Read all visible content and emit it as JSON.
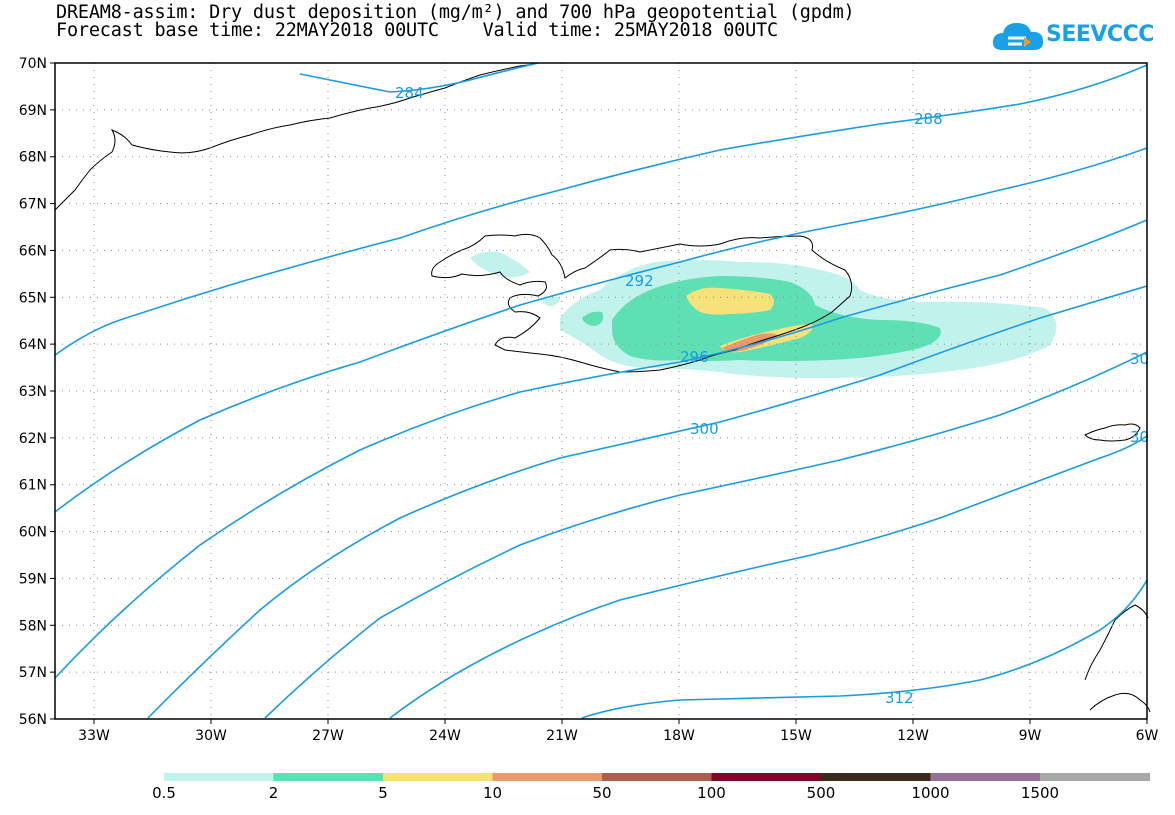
{
  "title": {
    "line1": "DREAM8-assim: Dry dust deposition (mg/m²) and 700 hPa geopotential (gpdm)",
    "line2": "Forecast base time: 22MAY2018 00UTC    Valid time: 25MAY2018 00UTC"
  },
  "logo": {
    "text": "SEEVCCC",
    "icon": "cloud-icon"
  },
  "map": {
    "lon_range": [
      -34,
      -6
    ],
    "lat_range": [
      56,
      70
    ],
    "lat_ticks": [
      "56N",
      "57N",
      "58N",
      "59N",
      "60N",
      "61N",
      "62N",
      "63N",
      "64N",
      "65N",
      "66N",
      "67N",
      "68N",
      "69N",
      "70N"
    ],
    "lon_ticks": [
      "33W",
      "30W",
      "27W",
      "24W",
      "21W",
      "18W",
      "15W",
      "12W",
      "9W",
      "6W"
    ],
    "contour_color": "#1a9be6",
    "contour_labels": [
      "284",
      "288",
      "292",
      "296",
      "300",
      "30",
      "30",
      "312"
    ]
  },
  "legend": {
    "colors": [
      "#c2f2ec",
      "#5ee0b4",
      "#f7e27a",
      "#e99a6d",
      "#a85f4e",
      "#7a0a2a",
      "#3a2a1e",
      "#957097",
      "#a8a8a8"
    ],
    "labels": [
      "0.5",
      "2",
      "5",
      "10",
      "50",
      "100",
      "500",
      "1000",
      "1500"
    ]
  }
}
